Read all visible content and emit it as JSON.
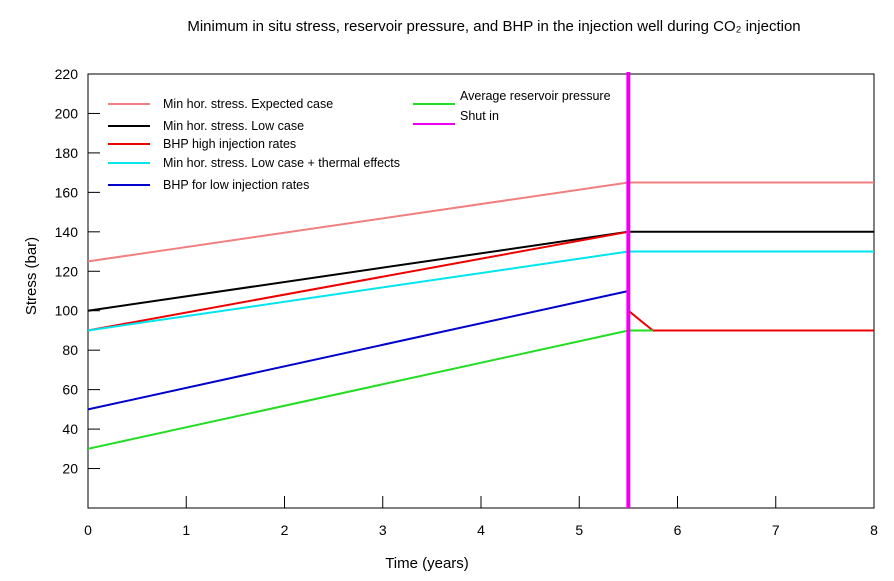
{
  "chart_data": {
    "type": "line",
    "title": "Minimum in situ stress, reservoir pressure, and BHP in the injection well during CO₂ injection",
    "xlabel": "Time (years)",
    "ylabel": "Stress (bar)",
    "xlim": [
      0,
      8
    ],
    "ylim": [
      0,
      220
    ],
    "x_ticks": [
      0,
      1,
      2,
      3,
      4,
      5,
      6,
      7,
      8
    ],
    "y_ticks": [
      20,
      40,
      60,
      80,
      100,
      120,
      140,
      160,
      180,
      200,
      220
    ],
    "grid": false,
    "legend_placement": "top",
    "series": [
      {
        "name": "Min hor. stress. Expected case",
        "color": "#f08080",
        "points": [
          [
            0,
            125
          ],
          [
            5.5,
            165
          ],
          [
            8,
            165
          ]
        ]
      },
      {
        "name": "Min hor. stress. Low case",
        "color": "#000000",
        "points": [
          [
            0,
            100
          ],
          [
            5.5,
            140
          ],
          [
            8,
            140
          ]
        ]
      },
      {
        "name": "BHP high injection rates",
        "color": "#ee0000",
        "points": [
          [
            0,
            90
          ],
          [
            5.5,
            140
          ],
          [
            5.5,
            100
          ],
          [
            5.75,
            90
          ],
          [
            8,
            90
          ]
        ]
      },
      {
        "name": "Min hor. stress. Low case + thermal effects",
        "color": "#00e5ee",
        "points": [
          [
            0,
            90
          ],
          [
            5.5,
            130
          ],
          [
            8,
            130
          ]
        ]
      },
      {
        "name": "BHP for low injection rates",
        "color": "#0000cc",
        "points": [
          [
            0,
            50
          ],
          [
            5.5,
            110
          ]
        ]
      },
      {
        "name": "Average reservoir pressure",
        "color": "#22dd22",
        "points": [
          [
            0,
            30
          ],
          [
            5.5,
            90
          ],
          [
            5.75,
            90
          ]
        ]
      },
      {
        "name": "Shut in",
        "color": "#ee00ee",
        "vertical_x": 5.5
      }
    ]
  }
}
